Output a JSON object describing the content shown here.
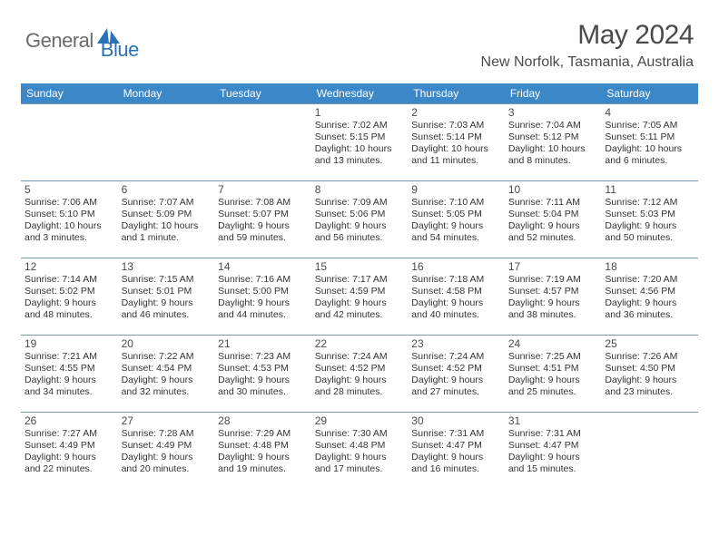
{
  "logo": {
    "text1": "General",
    "text2": "Blue",
    "shape_color": "#2a72b5"
  },
  "title": "May 2024",
  "location": "New Norfolk, Tasmania, Australia",
  "colors": {
    "header_bg": "#3b87c8",
    "header_text": "#ffffff",
    "row_border": "#7597b7",
    "text": "#333333",
    "title_text": "#4a4a4a"
  },
  "weekdays": [
    "Sunday",
    "Monday",
    "Tuesday",
    "Wednesday",
    "Thursday",
    "Friday",
    "Saturday"
  ],
  "weeks": [
    [
      null,
      null,
      null,
      {
        "day": "1",
        "sunrise": "7:02 AM",
        "sunset": "5:15 PM",
        "daylight": "10 hours and 13 minutes."
      },
      {
        "day": "2",
        "sunrise": "7:03 AM",
        "sunset": "5:14 PM",
        "daylight": "10 hours and 11 minutes."
      },
      {
        "day": "3",
        "sunrise": "7:04 AM",
        "sunset": "5:12 PM",
        "daylight": "10 hours and 8 minutes."
      },
      {
        "day": "4",
        "sunrise": "7:05 AM",
        "sunset": "5:11 PM",
        "daylight": "10 hours and 6 minutes."
      }
    ],
    [
      {
        "day": "5",
        "sunrise": "7:06 AM",
        "sunset": "5:10 PM",
        "daylight": "10 hours and 3 minutes."
      },
      {
        "day": "6",
        "sunrise": "7:07 AM",
        "sunset": "5:09 PM",
        "daylight": "10 hours and 1 minute."
      },
      {
        "day": "7",
        "sunrise": "7:08 AM",
        "sunset": "5:07 PM",
        "daylight": "9 hours and 59 minutes."
      },
      {
        "day": "8",
        "sunrise": "7:09 AM",
        "sunset": "5:06 PM",
        "daylight": "9 hours and 56 minutes."
      },
      {
        "day": "9",
        "sunrise": "7:10 AM",
        "sunset": "5:05 PM",
        "daylight": "9 hours and 54 minutes."
      },
      {
        "day": "10",
        "sunrise": "7:11 AM",
        "sunset": "5:04 PM",
        "daylight": "9 hours and 52 minutes."
      },
      {
        "day": "11",
        "sunrise": "7:12 AM",
        "sunset": "5:03 PM",
        "daylight": "9 hours and 50 minutes."
      }
    ],
    [
      {
        "day": "12",
        "sunrise": "7:14 AM",
        "sunset": "5:02 PM",
        "daylight": "9 hours and 48 minutes."
      },
      {
        "day": "13",
        "sunrise": "7:15 AM",
        "sunset": "5:01 PM",
        "daylight": "9 hours and 46 minutes."
      },
      {
        "day": "14",
        "sunrise": "7:16 AM",
        "sunset": "5:00 PM",
        "daylight": "9 hours and 44 minutes."
      },
      {
        "day": "15",
        "sunrise": "7:17 AM",
        "sunset": "4:59 PM",
        "daylight": "9 hours and 42 minutes."
      },
      {
        "day": "16",
        "sunrise": "7:18 AM",
        "sunset": "4:58 PM",
        "daylight": "9 hours and 40 minutes."
      },
      {
        "day": "17",
        "sunrise": "7:19 AM",
        "sunset": "4:57 PM",
        "daylight": "9 hours and 38 minutes."
      },
      {
        "day": "18",
        "sunrise": "7:20 AM",
        "sunset": "4:56 PM",
        "daylight": "9 hours and 36 minutes."
      }
    ],
    [
      {
        "day": "19",
        "sunrise": "7:21 AM",
        "sunset": "4:55 PM",
        "daylight": "9 hours and 34 minutes."
      },
      {
        "day": "20",
        "sunrise": "7:22 AM",
        "sunset": "4:54 PM",
        "daylight": "9 hours and 32 minutes."
      },
      {
        "day": "21",
        "sunrise": "7:23 AM",
        "sunset": "4:53 PM",
        "daylight": "9 hours and 30 minutes."
      },
      {
        "day": "22",
        "sunrise": "7:24 AM",
        "sunset": "4:52 PM",
        "daylight": "9 hours and 28 minutes."
      },
      {
        "day": "23",
        "sunrise": "7:24 AM",
        "sunset": "4:52 PM",
        "daylight": "9 hours and 27 minutes."
      },
      {
        "day": "24",
        "sunrise": "7:25 AM",
        "sunset": "4:51 PM",
        "daylight": "9 hours and 25 minutes."
      },
      {
        "day": "25",
        "sunrise": "7:26 AM",
        "sunset": "4:50 PM",
        "daylight": "9 hours and 23 minutes."
      }
    ],
    [
      {
        "day": "26",
        "sunrise": "7:27 AM",
        "sunset": "4:49 PM",
        "daylight": "9 hours and 22 minutes."
      },
      {
        "day": "27",
        "sunrise": "7:28 AM",
        "sunset": "4:49 PM",
        "daylight": "9 hours and 20 minutes."
      },
      {
        "day": "28",
        "sunrise": "7:29 AM",
        "sunset": "4:48 PM",
        "daylight": "9 hours and 19 minutes."
      },
      {
        "day": "29",
        "sunrise": "7:30 AM",
        "sunset": "4:48 PM",
        "daylight": "9 hours and 17 minutes."
      },
      {
        "day": "30",
        "sunrise": "7:31 AM",
        "sunset": "4:47 PM",
        "daylight": "9 hours and 16 minutes."
      },
      {
        "day": "31",
        "sunrise": "7:31 AM",
        "sunset": "4:47 PM",
        "daylight": "9 hours and 15 minutes."
      },
      null
    ]
  ]
}
